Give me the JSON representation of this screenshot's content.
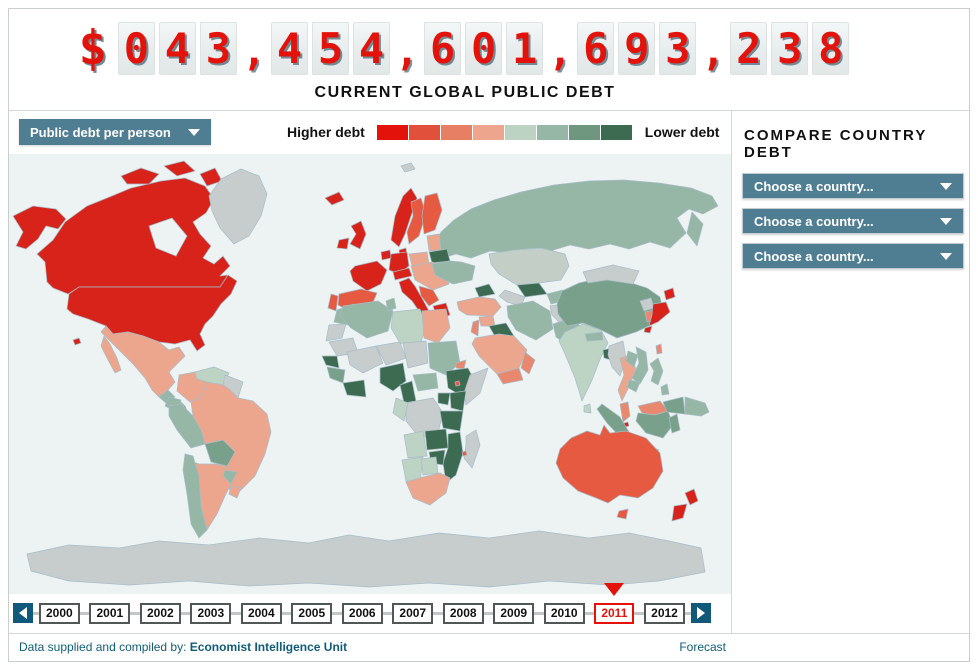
{
  "header": {
    "currency_symbol": "$",
    "counter_groups": [
      "043",
      "454",
      "601",
      "693",
      "238"
    ],
    "title": "CURRENT GLOBAL PUBLIC DEBT"
  },
  "controls": {
    "metric_dropdown": {
      "label": "Public debt per person"
    },
    "legend": {
      "higher_label": "Higher debt",
      "lower_label": "Lower debt",
      "colors": [
        "#e3120b",
        "#e0503a",
        "#e67f63",
        "#eda68d",
        "#bcd2c3",
        "#96b6a6",
        "#6f967f",
        "#3d6b51"
      ]
    }
  },
  "compare": {
    "heading": "COMPARE COUNTRY DEBT",
    "selects": [
      {
        "label": "Choose a country..."
      },
      {
        "label": "Choose a country..."
      },
      {
        "label": "Choose a country..."
      }
    ]
  },
  "timeline": {
    "years": [
      "2000",
      "2001",
      "2002",
      "2003",
      "2004",
      "2005",
      "2006",
      "2007",
      "2008",
      "2009",
      "2010",
      "2011",
      "2012"
    ],
    "selected_year": "2011"
  },
  "footer": {
    "credit_prefix": "Data supplied and compiled by: ",
    "credit_org": "Economist Intelligence Unit",
    "right_label": "Forecast"
  },
  "map": {
    "palette": {
      "red": "#d8231a",
      "redOrange": "#e55a41",
      "salmon": "#e8886e",
      "lightSalmon": "#eca68d",
      "paleGreen": "#bdd3c4",
      "sage": "#96b6a6",
      "green": "#78a08a",
      "darkGreen": "#3d6b51",
      "gray": "#c7cdcc",
      "grayGreen": "#c2cec6",
      "ocean": "#edf2f2"
    },
    "countries": {
      "canada": "red",
      "canadaIslands": "red",
      "alaska": "red",
      "usa": "red",
      "hawaii": "red",
      "greenland": "gray",
      "mexico": "lightSalmon",
      "baja": "lightSalmon",
      "guatemala": "sage",
      "honduras": "sage",
      "nicaragua": "darkGreen",
      "panama": "green",
      "cuba": "paleGreen",
      "hispaniola": "sage",
      "venezuela": "paleGreen",
      "colombia": "lightSalmon",
      "guyanas": "gray",
      "ecuador": "sage",
      "peru": "sage",
      "brazil": "lightSalmon",
      "bolivia": "green",
      "paraguay": "sage",
      "chile": "sage",
      "argentina": "lightSalmon",
      "uruguay": "lightSalmon",
      "iceland": "red",
      "ireland": "red",
      "uk": "red",
      "norway": "red",
      "sweden": "redOrange",
      "finland": "redOrange",
      "denmark": "red",
      "baltics": "lightSalmon",
      "belarus": "darkGreen",
      "poland": "lightSalmon",
      "germany": "red",
      "lowlands": "red",
      "france": "red",
      "spain": "redOrange",
      "portugal": "redOrange",
      "alpine": "red",
      "easternEurope": "lightSalmon",
      "italy": "red",
      "sicily": "red",
      "balkans": "redOrange",
      "greece": "red",
      "ukraine": "sage",
      "russia": "sage",
      "kamchatka": "sage",
      "svalbard": "gray",
      "kazakhstan": "grayGreen",
      "uzbekistan": "darkGreen",
      "turkmenistan": "gray",
      "kyrgyzstan": "sage",
      "caucasus": "darkGreen",
      "turkey": "lightSalmon",
      "syria": "lightSalmon",
      "iraq": "darkGreen",
      "levant": "salmon",
      "saudiArabia": "lightSalmon",
      "yemen": "salmon",
      "oman": "salmon",
      "iran": "sage",
      "afghanistan": "gray",
      "pakistan": "sage",
      "india": "paleGreen",
      "nepal": "sage",
      "bangladesh": "darkGreen",
      "sriLanka": "paleGreen",
      "myanmar": "gray",
      "thailand": "lightSalmon",
      "laos": "sage",
      "vietnam": "sage",
      "cambodia": "sage",
      "malaysiaPeninsula": "salmon",
      "singapore": "red",
      "sumatra": "green",
      "java": "green",
      "borneoMalaysia": "salmon",
      "borneoIndonesia": "green",
      "sulawesi": "green",
      "philippines": "sage",
      "philippines2": "sage",
      "newGuineaWest": "green",
      "png": "sage",
      "china": "green",
      "mongolia": "gray",
      "northKorea": "gray",
      "southKorea": "salmon",
      "japanHokkaido": "red",
      "japanHonshu": "red",
      "japanKyushu": "red",
      "taiwan": "salmon",
      "morocco": "sage",
      "westernSahara": "gray",
      "mauritania": "gray",
      "senegal": "darkGreen",
      "guinea": "green",
      "ivoryGhana": "darkGreen",
      "algeria": "sage",
      "tunisia": "sage",
      "libya": "paleGreen",
      "egypt": "lightSalmon",
      "mali": "gray",
      "niger": "gray",
      "chad": "gray",
      "sudan": "sage",
      "eritrea": "salmon",
      "nigeria": "darkGreen",
      "cameroon": "darkGreen",
      "centralAfrica": "sage",
      "ethiopia": "darkGreen",
      "somalia": "gray",
      "kenya": "darkGreen",
      "uganda": "darkGreen",
      "drc": "gray",
      "congoGabon": "paleGreen",
      "tanzania": "darkGreen",
      "angola": "paleGreen",
      "zambia": "darkGreen",
      "mozambique": "darkGreen",
      "zimbabwe": "darkGreen",
      "namibia": "paleGreen",
      "botswana": "paleGreen",
      "southAfrica": "lightSalmon",
      "madagascar": "gray",
      "seychelles": "redOrange",
      "mauritius": "redOrange",
      "australia": "redOrange",
      "tasmania": "redOrange",
      "nzNorth": "red",
      "nzSouth": "red",
      "antarctica": "gray"
    }
  }
}
